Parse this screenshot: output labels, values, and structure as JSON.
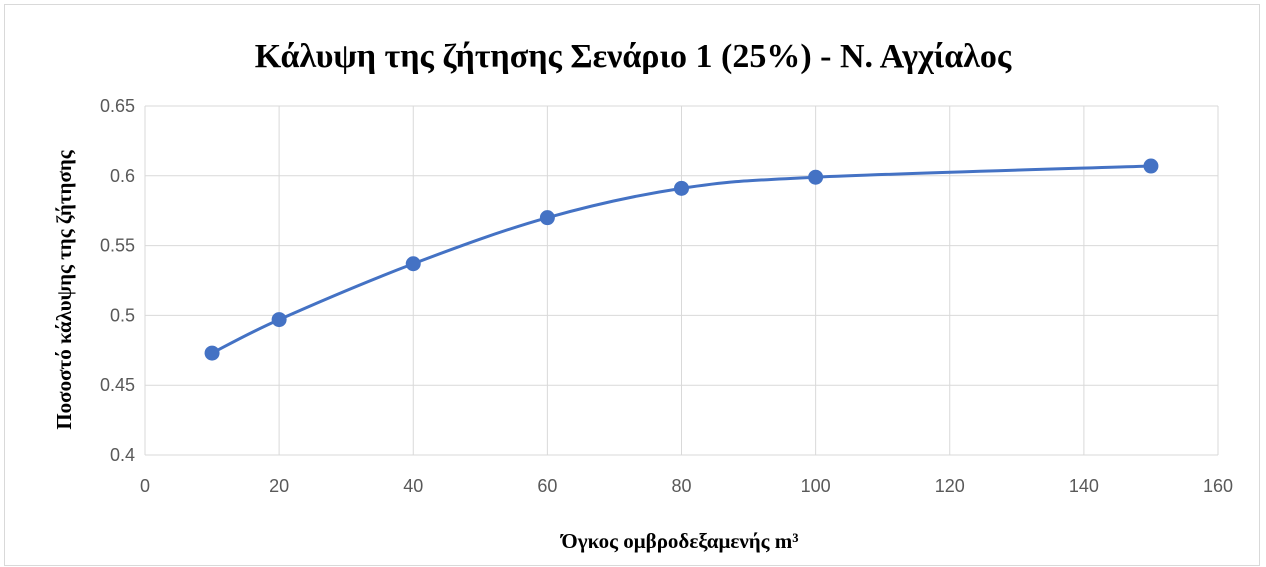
{
  "chart_data": {
    "type": "scatter",
    "title": "Κάλυψη της ζήτησης  Σενάριο 1 (25%) - Ν. Αγχίαλος",
    "xlabel": "Όγκος ομβροδεξαμενής m³",
    "ylabel": "Ποσοστό κάλυψης της ζήτησης",
    "xlim": [
      0,
      160
    ],
    "ylim": [
      0.4,
      0.65
    ],
    "x_ticks": [
      "0",
      "20",
      "40",
      "60",
      "80",
      "100",
      "120",
      "140",
      "160"
    ],
    "y_ticks": [
      "0.4",
      "0.45",
      "0.5",
      "0.55",
      "0.6",
      "0.65"
    ],
    "grid": true,
    "smooth": true,
    "series": [
      {
        "x": [
          10,
          20,
          40,
          60,
          80,
          100,
          150
        ],
        "y": [
          0.473,
          0.497,
          0.537,
          0.57,
          0.591,
          0.599,
          0.607
        ]
      }
    ],
    "colors": {
      "series": "#4472c4"
    }
  }
}
